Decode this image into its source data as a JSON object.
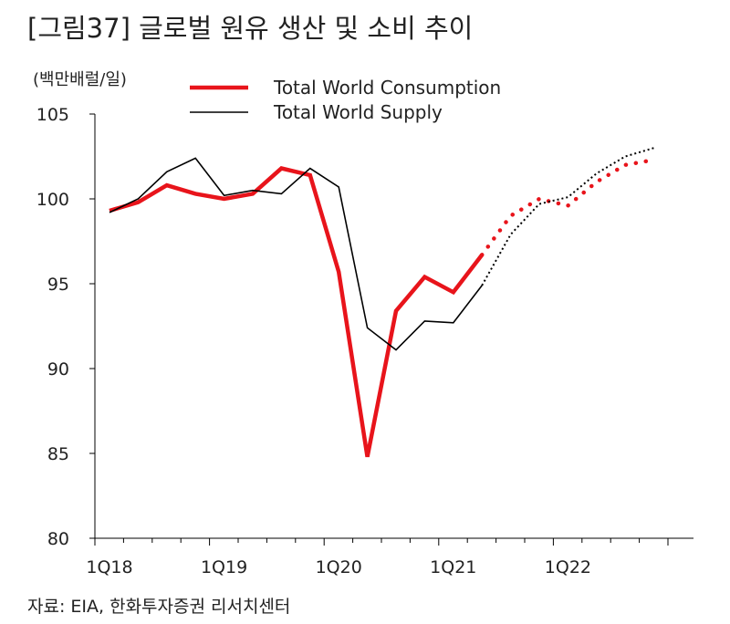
{
  "figure": {
    "title": "[그림37]  글로벌 원유 생산 및 소비 추이",
    "source": "자료: EIA, 한화투자증권 리서치센터"
  },
  "chart_data": {
    "type": "line",
    "ylabel": "(백만배럴/일)",
    "ylim": [
      80,
      105
    ],
    "yticks": [
      80,
      85,
      90,
      95,
      100,
      105
    ],
    "xticks": [
      {
        "label": "1Q18",
        "index": 0
      },
      {
        "label": "1Q19",
        "index": 4
      },
      {
        "label": "1Q20",
        "index": 8
      },
      {
        "label": "1Q21",
        "index": 12
      },
      {
        "label": "1Q22",
        "index": 16
      }
    ],
    "x_count": 20,
    "periods": [
      "1Q18",
      "2Q18",
      "3Q18",
      "4Q18",
      "1Q19",
      "2Q19",
      "3Q19",
      "4Q19",
      "1Q20",
      "2Q20",
      "3Q20",
      "4Q20",
      "1Q21",
      "2Q21",
      "3Q21",
      "4Q21",
      "1Q22",
      "2Q22",
      "3Q22",
      "4Q22"
    ],
    "forecast_start_index": 13,
    "legend_position": "top-center",
    "series": [
      {
        "name": "Total World Consumption",
        "color": "#e8141b",
        "style": "thick",
        "values": [
          99.3,
          99.8,
          100.8,
          100.3,
          100.0,
          100.3,
          101.8,
          101.4,
          95.7,
          84.8,
          93.4,
          95.4,
          94.5,
          96.7,
          99.0,
          100.0,
          99.6,
          101.0,
          102.0,
          102.3
        ]
      },
      {
        "name": "Total World Supply",
        "color": "#000000",
        "style": "thin",
        "values": [
          99.2,
          100.0,
          101.6,
          102.4,
          100.2,
          100.5,
          100.3,
          101.8,
          100.7,
          92.4,
          91.1,
          92.8,
          92.7,
          94.9,
          97.9,
          99.7,
          100.1,
          101.5,
          102.5,
          103.0
        ]
      }
    ]
  }
}
